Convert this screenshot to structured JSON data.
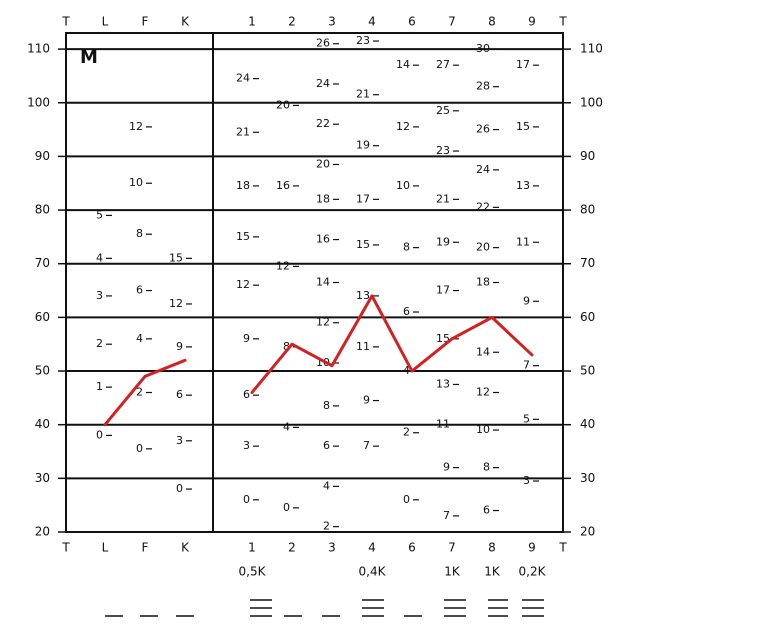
{
  "chart_data": [
    {
      "type": "line",
      "title": "M",
      "axis_label": "T",
      "color": "#d42020",
      "categories": [
        "L",
        "F",
        "K"
      ],
      "values": [
        40,
        49,
        52
      ],
      "ylim": [
        20,
        113
      ],
      "yticks": [
        20,
        30,
        40,
        50,
        60,
        70,
        80,
        90,
        100,
        110
      ],
      "grid": true,
      "scale_labels": [
        [
          {
            "value": 38,
            "label": "0"
          },
          {
            "value": 47,
            "label": "1"
          },
          {
            "value": 55,
            "label": "2"
          },
          {
            "value": 64,
            "label": "3"
          },
          {
            "value": 71,
            "label": "4"
          },
          {
            "value": 79,
            "label": "5"
          }
        ],
        [
          {
            "value": 35.5,
            "label": "0"
          },
          {
            "value": 46,
            "label": "2"
          },
          {
            "value": 56,
            "label": "4"
          },
          {
            "value": 65,
            "label": "6"
          },
          {
            "value": 75.5,
            "label": "8"
          },
          {
            "value": 85,
            "label": "10"
          },
          {
            "value": 95.5,
            "label": "12"
          }
        ],
        [
          {
            "value": 28,
            "label": "0"
          },
          {
            "value": 37,
            "label": "3"
          },
          {
            "value": 45.5,
            "label": "6"
          },
          {
            "value": 54.5,
            "label": "9"
          },
          {
            "value": 62.5,
            "label": "12"
          },
          {
            "value": 71,
            "label": "15"
          }
        ]
      ]
    },
    {
      "type": "line",
      "axis_label": "T",
      "color": "#d42020",
      "categories": [
        "1",
        "2",
        "3",
        "4",
        "6",
        "7",
        "8",
        "9"
      ],
      "sub_labels": [
        "0,5K",
        null,
        null,
        "0,4K",
        null,
        "1K",
        "1K",
        "0,2K"
      ],
      "values": [
        46,
        55,
        51,
        64,
        50,
        56,
        60,
        53
      ],
      "ylim": [
        20,
        113
      ],
      "yticks": [
        20,
        30,
        40,
        50,
        60,
        70,
        80,
        90,
        100,
        110
      ],
      "grid": true,
      "scale_labels": [
        [
          {
            "value": 26,
            "label": "0"
          },
          {
            "value": 36,
            "label": "3"
          },
          {
            "value": 45.5,
            "label": "6"
          },
          {
            "value": 56,
            "label": "9"
          },
          {
            "value": 66,
            "label": "12"
          },
          {
            "value": 75,
            "label": "15"
          },
          {
            "value": 84.5,
            "label": "18"
          },
          {
            "value": 94.5,
            "label": "21"
          },
          {
            "value": 104.5,
            "label": "24"
          }
        ],
        [
          {
            "value": 24.5,
            "label": "0"
          },
          {
            "value": 39.5,
            "label": "4"
          },
          {
            "value": 54.5,
            "label": "8"
          },
          {
            "value": 69.5,
            "label": "12"
          },
          {
            "value": 84.5,
            "label": "16"
          },
          {
            "value": 99.5,
            "label": "20"
          }
        ],
        [
          {
            "value": 21,
            "label": "2"
          },
          {
            "value": 28.5,
            "label": "4"
          },
          {
            "value": 36,
            "label": "6"
          },
          {
            "value": 43.5,
            "label": "8"
          },
          {
            "value": 51.5,
            "label": "10"
          },
          {
            "value": 59,
            "label": "12"
          },
          {
            "value": 66.5,
            "label": "14"
          },
          {
            "value": 74.5,
            "label": "16"
          },
          {
            "value": 82,
            "label": "18"
          },
          {
            "value": 88.5,
            "label": "20"
          },
          {
            "value": 96,
            "label": "22"
          },
          {
            "value": 103.5,
            "label": "24"
          },
          {
            "value": 111,
            "label": "26"
          }
        ],
        [
          {
            "value": 36,
            "label": "7"
          },
          {
            "value": 44.5,
            "label": "9"
          },
          {
            "value": 54.5,
            "label": "11"
          },
          {
            "value": 64,
            "label": "13"
          },
          {
            "value": 73.5,
            "label": "15"
          },
          {
            "value": 82,
            "label": "17"
          },
          {
            "value": 92,
            "label": "19"
          },
          {
            "value": 101.5,
            "label": "21"
          },
          {
            "value": 111.5,
            "label": "23"
          }
        ],
        [
          {
            "value": 26,
            "label": "0"
          },
          {
            "value": 38.5,
            "label": "2"
          },
          {
            "value": 50,
            "label": "4"
          },
          {
            "value": 61,
            "label": "6"
          },
          {
            "value": 73,
            "label": "8"
          },
          {
            "value": 84.5,
            "label": "10"
          },
          {
            "value": 95.5,
            "label": "12"
          },
          {
            "value": 107,
            "label": "14"
          }
        ],
        [
          {
            "value": 23,
            "label": "7"
          },
          {
            "value": 32,
            "label": "9"
          },
          {
            "value": 40,
            "label": "11"
          },
          {
            "value": 47.5,
            "label": "13"
          },
          {
            "value": 56,
            "label": "15"
          },
          {
            "value": 65,
            "label": "17"
          },
          {
            "value": 74,
            "label": "19"
          },
          {
            "value": 82,
            "label": "21"
          },
          {
            "value": 91,
            "label": "23"
          },
          {
            "value": 98.5,
            "label": "25"
          },
          {
            "value": 107,
            "label": "27"
          }
        ],
        [
          {
            "value": 24,
            "label": "6"
          },
          {
            "value": 32,
            "label": "8"
          },
          {
            "value": 39,
            "label": "10"
          },
          {
            "value": 46,
            "label": "12"
          },
          {
            "value": 53.5,
            "label": "14"
          },
          {
            "value": 66.5,
            "label": "18"
          },
          {
            "value": 73,
            "label": "20"
          },
          {
            "value": 80.5,
            "label": "22"
          },
          {
            "value": 87.5,
            "label": "24"
          },
          {
            "value": 95,
            "label": "26"
          },
          {
            "value": 103,
            "label": "28"
          },
          {
            "value": 110,
            "label": "30"
          }
        ],
        [
          {
            "value": 29.5,
            "label": "3"
          },
          {
            "value": 41,
            "label": "5"
          },
          {
            "value": 51,
            "label": "7"
          },
          {
            "value": 63,
            "label": "9"
          },
          {
            "value": 74,
            "label": "11"
          },
          {
            "value": 84.5,
            "label": "13"
          },
          {
            "value": 95.5,
            "label": "15"
          },
          {
            "value": 107,
            "label": "17"
          }
        ]
      ]
    }
  ]
}
